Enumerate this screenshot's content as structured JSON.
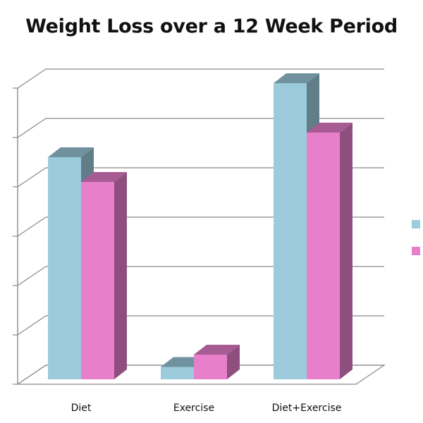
{
  "chart_data": {
    "type": "bar",
    "style": "3d-clustered-column",
    "title": "Weight Loss over a 12 Week Period",
    "categories": [
      "Diet",
      "Exercise",
      "Diet+Exercise"
    ],
    "series": [
      {
        "values": [
          9,
          0.5,
          12
        ],
        "color": "#9ccbdb"
      },
      {
        "values": [
          8,
          1,
          10
        ],
        "color": "#e77fcb"
      }
    ],
    "ylim": [
      0,
      12
    ],
    "ytick_step": 2,
    "grid": true,
    "legend": "right"
  }
}
